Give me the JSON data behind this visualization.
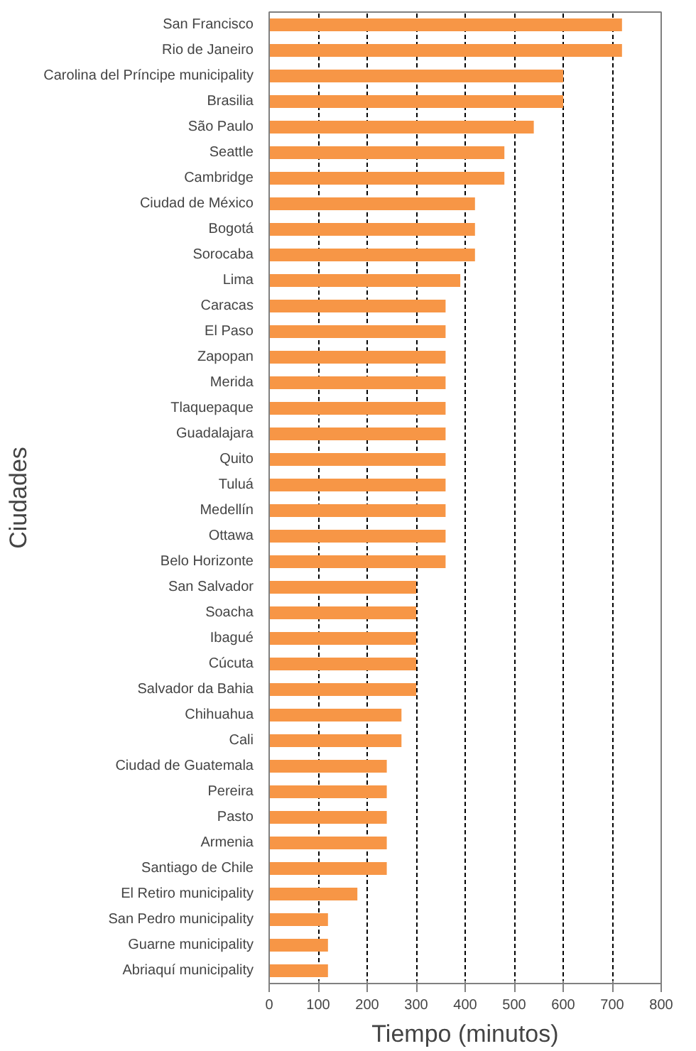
{
  "chart_data": {
    "type": "bar",
    "orientation": "horizontal",
    "xlabel": "Tiempo (minutos)",
    "ylabel": "Ciudades",
    "categories": [
      "San Francisco",
      "Rio de Janeiro",
      "Carolina del Príncipe municipality",
      "Brasilia",
      "São Paulo",
      "Seattle",
      "Cambridge",
      "Ciudad de México",
      "Bogotá",
      "Sorocaba",
      "Lima",
      "Caracas",
      "El Paso",
      "Zapopan",
      "Merida",
      "Tlaquepaque",
      "Guadalajara",
      "Quito",
      "Tuluá",
      "Medellín",
      "Ottawa",
      "Belo Horizonte",
      "San Salvador",
      "Soacha",
      "Ibagué",
      "Cúcuta",
      "Salvador da Bahia",
      "Chihuahua",
      "Cali",
      "Ciudad de Guatemala",
      "Pereira",
      "Pasto",
      "Armenia",
      "Santiago de Chile",
      "El Retiro municipality",
      "San Pedro municipality",
      "Guarne municipality",
      "Abriaquí municipality"
    ],
    "values": [
      720,
      720,
      600,
      600,
      540,
      480,
      480,
      420,
      420,
      420,
      390,
      360,
      360,
      360,
      360,
      360,
      360,
      360,
      360,
      360,
      360,
      360,
      300,
      300,
      300,
      300,
      300,
      270,
      270,
      240,
      240,
      240,
      240,
      240,
      180,
      120,
      120,
      120
    ],
    "color": "#f79646",
    "xlim": [
      0,
      800
    ],
    "xticks": [
      0,
      100,
      200,
      300,
      400,
      500,
      600,
      700,
      800
    ],
    "grid": "x"
  }
}
